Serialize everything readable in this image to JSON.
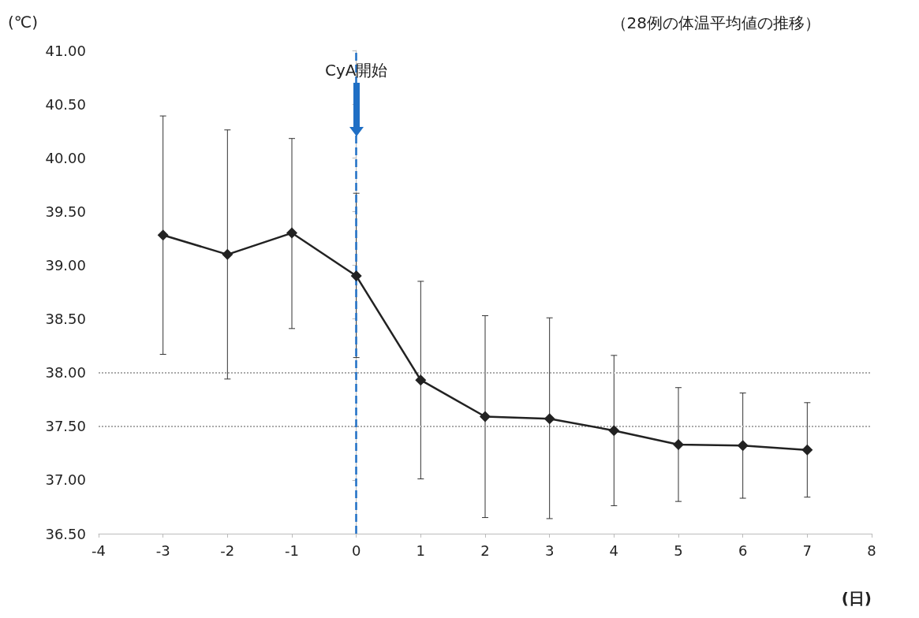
{
  "chart_data": {
    "type": "line",
    "title": "（28例の体温平均値の推移）",
    "xlabel": "(日)",
    "ylabel": "(℃)",
    "x": [
      -3,
      -2,
      -1,
      0,
      1,
      2,
      3,
      4,
      5,
      6,
      7
    ],
    "series": [
      {
        "color": "#222222",
        "values": [
          39.28,
          39.1,
          39.3,
          38.9,
          37.93,
          37.59,
          37.57,
          37.46,
          37.33,
          37.32,
          37.28
        ],
        "errors": [
          [
            38.17,
            40.39
          ],
          [
            37.94,
            40.26
          ],
          [
            38.41,
            40.18
          ],
          [
            38.14,
            39.67
          ],
          [
            37.01,
            38.85
          ],
          [
            36.65,
            38.53
          ],
          [
            36.64,
            38.51
          ],
          [
            36.76,
            38.16
          ],
          [
            36.8,
            37.86
          ],
          [
            36.83,
            37.81
          ],
          [
            36.84,
            37.72
          ]
        ]
      }
    ],
    "xlim": [
      -4,
      8
    ],
    "xticks": [
      -4,
      -3,
      -2,
      -1,
      0,
      1,
      2,
      3,
      4,
      5,
      6,
      7,
      8
    ],
    "ylim": [
      36.5,
      41
    ],
    "yticks": [
      {
        "value": 36.5,
        "label": "36.50"
      },
      {
        "value": 37,
        "label": "37.00"
      },
      {
        "value": 37.5,
        "label": "37.50"
      },
      {
        "value": 38,
        "label": "38.00"
      },
      {
        "value": 38.5,
        "label": "38.50"
      },
      {
        "value": 39,
        "label": "39.00"
      },
      {
        "value": 39.5,
        "label": "39.50"
      },
      {
        "value": 40,
        "label": "40.00"
      },
      {
        "value": 40.5,
        "label": "40.50"
      },
      {
        "value": 41,
        "label": "41.00"
      }
    ],
    "ref_lines": [
      {
        "axis": "y",
        "value": 38,
        "color": "#aaaaaa",
        "line_style": "dotted"
      },
      {
        "axis": "y",
        "value": 37.5,
        "color": "#aaaaaa",
        "line_style": "dotted"
      },
      {
        "axis": "x",
        "value": 0,
        "color": "#1f6fc5",
        "line_style": "dashed"
      }
    ],
    "annotations": [
      {
        "text": "CyA開始",
        "x": 0,
        "y": 40.82
      }
    ],
    "marker": "diamond",
    "line_style": "solid",
    "grid": false
  }
}
